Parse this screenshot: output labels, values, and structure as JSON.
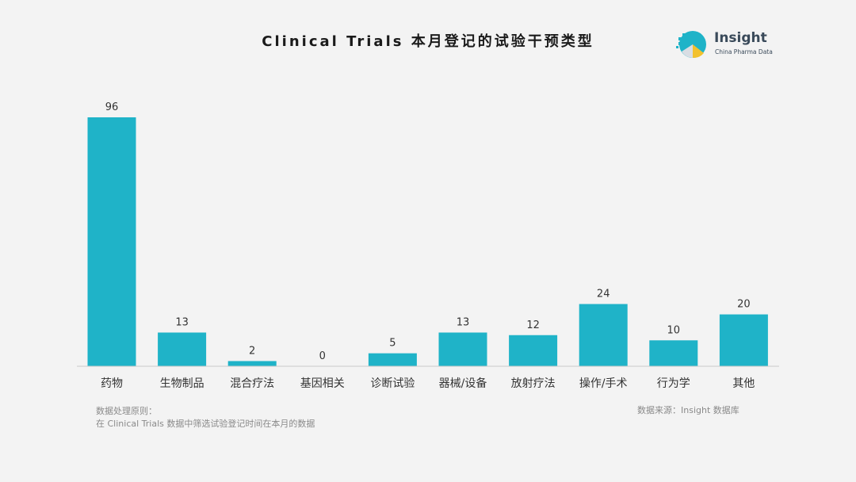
{
  "title": "Clinical Trials 本月登记的试验干预类型",
  "logo": {
    "name": "Insight",
    "subtitle": "China Pharma Data",
    "icon": "insight-logo-icon"
  },
  "footer": {
    "note_title": "数据处理原则：",
    "note_body": "在 Clinical Trials 数据中筛选试验登记时间在本月的数据",
    "source": "数据来源：Insight 数据库"
  },
  "colors": {
    "bar": "#1fb3c8",
    "axis": "#c8c8c8",
    "background": "#f3f3f3"
  },
  "chart_data": {
    "type": "bar",
    "title": "Clinical Trials 本月登记的试验干预类型",
    "categories": [
      "药物",
      "生物制品",
      "混合疗法",
      "基因相关",
      "诊断试验",
      "器械/设备",
      "放射疗法",
      "操作/手术",
      "行为学",
      "其他"
    ],
    "values": [
      96,
      13,
      2,
      0,
      5,
      13,
      12,
      24,
      10,
      20
    ],
    "xlabel": "",
    "ylabel": "",
    "ylim": [
      0,
      96
    ],
    "grid": false,
    "data_labels": true,
    "legend": "none"
  }
}
